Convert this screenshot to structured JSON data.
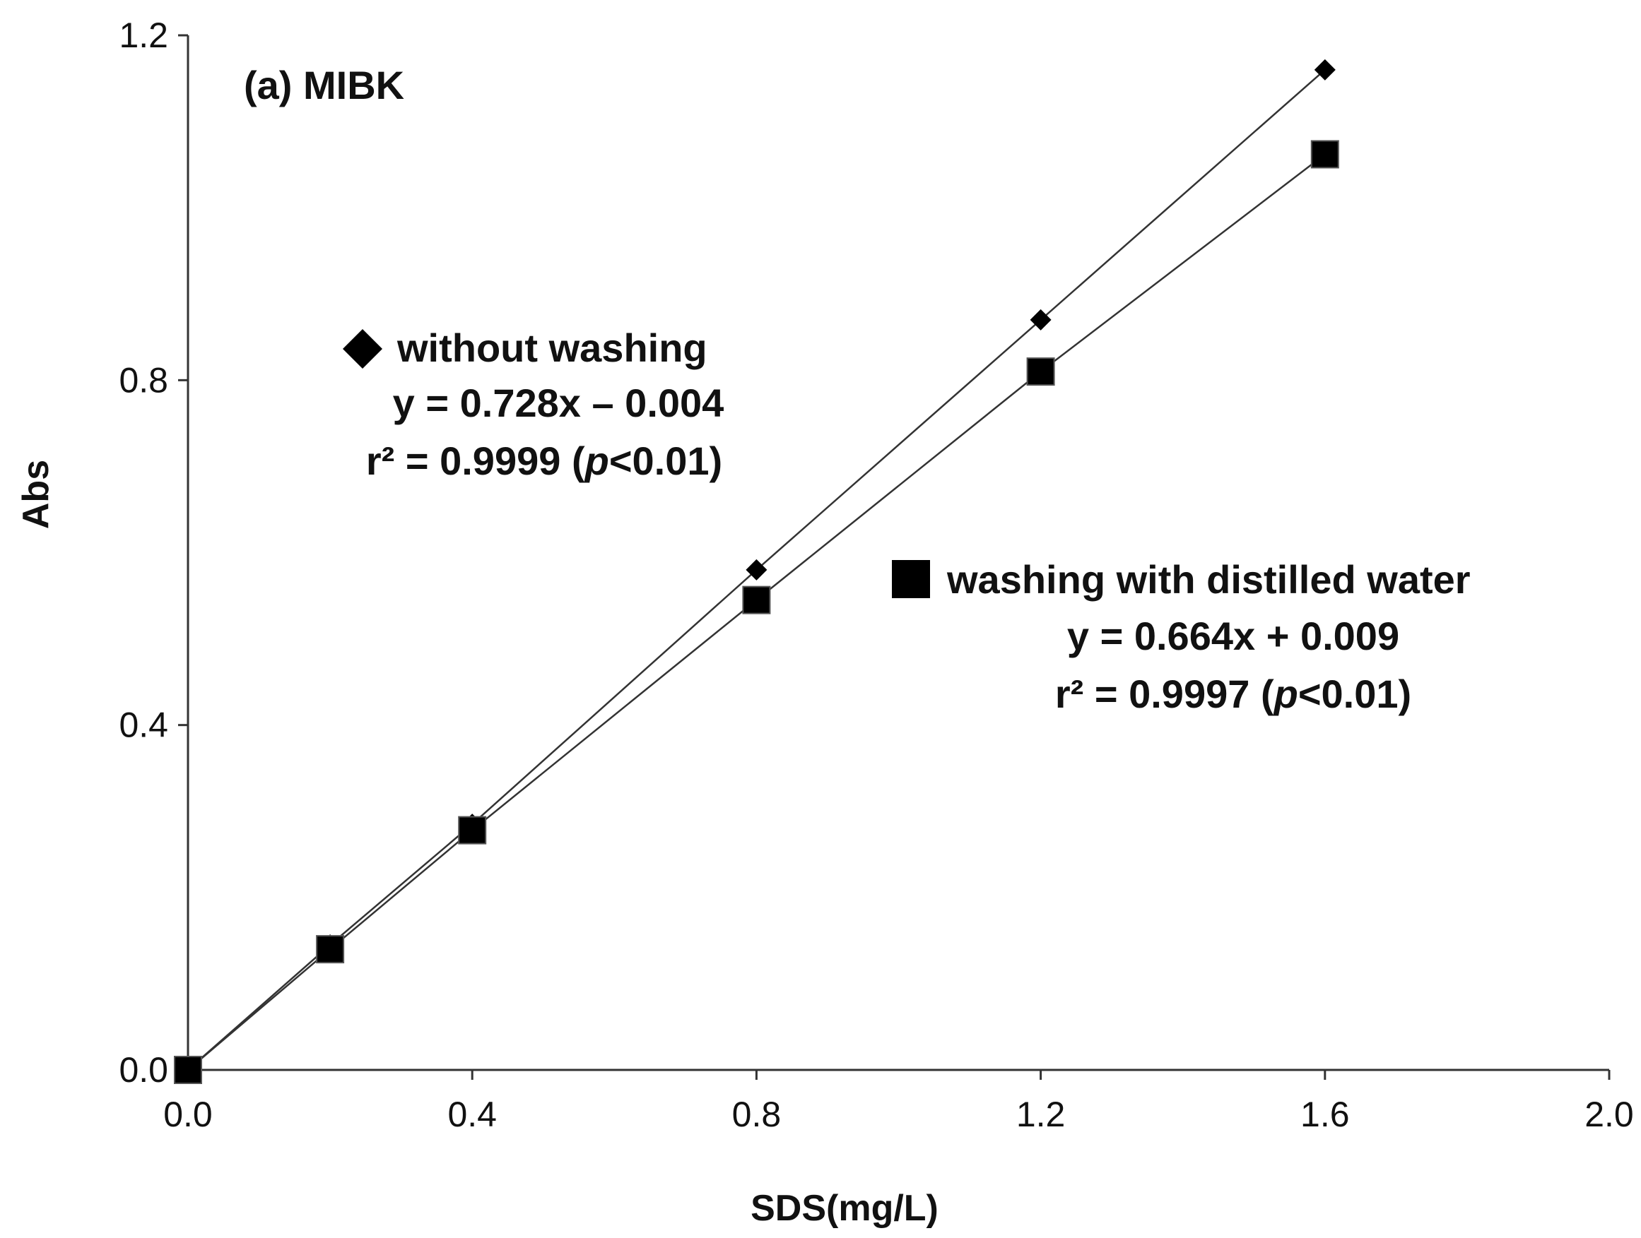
{
  "chart_data": {
    "type": "scatter",
    "title": "(a) MIBK",
    "xlabel": "SDS(mg/L)",
    "ylabel": "Abs",
    "xlim": [
      0.0,
      2.0
    ],
    "ylim": [
      0.0,
      1.2
    ],
    "x_ticks": [
      "0.0",
      "0.4",
      "0.8",
      "1.2",
      "1.6",
      "2.0"
    ],
    "y_ticks": [
      "0.0",
      "0.4",
      "0.8",
      "1.2"
    ],
    "x_tick_values": [
      0.0,
      0.4,
      0.8,
      1.2,
      1.6,
      2.0
    ],
    "y_tick_values": [
      0.0,
      0.4,
      0.8,
      1.2
    ],
    "grid": false,
    "series": [
      {
        "name": "without washing",
        "marker": "diamond",
        "color": "#000000",
        "x": [
          0.0,
          0.2,
          0.4,
          0.8,
          1.2,
          1.6
        ],
        "y": [
          0.0,
          0.145,
          0.285,
          0.58,
          0.87,
          1.16
        ],
        "equation": "y = 0.728x – 0.004",
        "r2_prefix": "r² = 0.9999 (",
        "r2_p": "p",
        "r2_suffix": "<0.01)"
      },
      {
        "name": "washing with distilled water",
        "marker": "square",
        "color": "#000000",
        "x": [
          0.0,
          0.2,
          0.4,
          0.8,
          1.2,
          1.6
        ],
        "y": [
          0.0,
          0.14,
          0.278,
          0.545,
          0.81,
          1.062
        ],
        "equation": "y = 0.664x + 0.009",
        "r2_prefix": "r² = 0.9997 (",
        "r2_p": "p",
        "r2_suffix": "<0.01)"
      }
    ]
  }
}
